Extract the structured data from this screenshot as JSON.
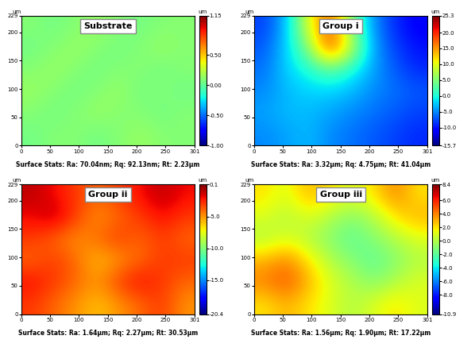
{
  "chart_data": [
    {
      "type": "heatmap",
      "title": "Substrate",
      "ylabel": "um",
      "colorbar_label": "um",
      "annotation": "Surface Stats: Ra: 70.04nm; Rq: 92.13nm; Rt: 2.23μm",
      "color": "jet",
      "xlim": [
        0,
        301
      ],
      "ylim": [
        0,
        229
      ],
      "xticks": [
        0,
        50,
        100,
        150,
        200,
        250,
        301
      ],
      "yticks": [
        0,
        50,
        100,
        150,
        200,
        229
      ],
      "color_range": [
        -1.0,
        1.15
      ],
      "colorbar_ticks": [
        {
          "value": -1.0,
          "label": "-1.00"
        },
        {
          "value": -0.5,
          "label": "-0.50"
        },
        {
          "value": 0.0,
          "label": "0.00"
        },
        {
          "value": 0.5,
          "label": "0.50"
        },
        1.15
      ],
      "cells": [
        [
          0.1,
          0.05,
          0.1,
          0.15,
          0.1,
          0.05,
          0.1,
          0.1
        ],
        [
          0.05,
          0.1,
          0.15,
          0.1,
          0.05,
          0.1,
          0.15,
          0.1
        ],
        [
          0.1,
          0.15,
          0.1,
          0.05,
          0.1,
          0.1,
          0.05,
          0.1
        ],
        [
          0.15,
          0.1,
          0.05,
          0.1,
          0.15,
          0.05,
          0.1,
          0.05
        ],
        [
          0.1,
          0.05,
          0.1,
          0.15,
          0.1,
          0.1,
          0.05,
          0.1
        ],
        [
          0.05,
          0.1,
          0.1,
          0.05,
          0.1,
          0.15,
          0.1,
          0.1
        ]
      ]
    },
    {
      "type": "heatmap",
      "title": "Group i",
      "ylabel": "um",
      "colorbar_label": "um",
      "annotation": "Surface Stats: Ra: 3.32μm; Rq: 4.75μm; Rt: 41.04μm",
      "color": "jet",
      "xlim": [
        0,
        301
      ],
      "ylim": [
        0,
        229
      ],
      "xticks": [
        0,
        50,
        100,
        150,
        200,
        250,
        301
      ],
      "yticks": [
        0,
        50,
        100,
        150,
        200,
        229
      ],
      "color_range": [
        -15.7,
        25.3
      ],
      "colorbar_ticks": [
        -15.7,
        {
          "value": -10.0,
          "label": "-10.0"
        },
        {
          "value": -5.0,
          "label": "-5.0"
        },
        0.0,
        5.0,
        10.0,
        15.0,
        20.0,
        25.3
      ],
      "cells": [
        [
          -8,
          -3,
          10,
          18,
          5,
          -5,
          -9,
          -11
        ],
        [
          -7,
          -2,
          5,
          20,
          8,
          -4,
          -8,
          -10
        ],
        [
          -6,
          -2,
          0,
          3,
          0,
          -4,
          -7,
          -9
        ],
        [
          -5,
          -3,
          -2,
          -2,
          -3,
          -5,
          -6,
          -7
        ],
        [
          -4,
          -3,
          -3,
          -4,
          -5,
          -6,
          -7,
          -8
        ],
        [
          -5,
          -4,
          -3,
          -5,
          -6,
          -7,
          -8,
          -9
        ]
      ]
    },
    {
      "type": "heatmap",
      "title": "Group ii",
      "ylabel": "um",
      "colorbar_label": "um",
      "annotation": "Surface Stats: Ra: 1.64μm; Rq: 2.27μm; Rt: 30.53μm",
      "color": "jet",
      "xlim": [
        0,
        301
      ],
      "ylim": [
        0,
        229
      ],
      "xticks": [
        0,
        50,
        100,
        150,
        200,
        250,
        301
      ],
      "yticks": [
        0,
        50,
        100,
        150,
        200,
        229
      ],
      "color_range": [
        -20.4,
        0.1
      ],
      "colorbar_ticks": [
        -20.4,
        {
          "value": -15.0,
          "label": "-15.0"
        },
        {
          "value": -10.0,
          "label": "-10.0"
        },
        {
          "value": -5.0,
          "label": "-5.0"
        },
        0.1
      ],
      "cells": [
        [
          -1,
          -2,
          -3,
          -4,
          -3,
          -2,
          -1,
          -2
        ],
        [
          -2,
          -1,
          -3,
          -5,
          -4,
          -3,
          -2,
          -3
        ],
        [
          -3,
          -4,
          -5,
          -4,
          -3,
          -4,
          -3,
          -4
        ],
        [
          -4,
          -3,
          -4,
          -6,
          -5,
          -4,
          -3,
          -3
        ],
        [
          -2,
          -3,
          -4,
          -5,
          -3,
          -2,
          -3,
          -4
        ],
        [
          -3,
          -4,
          -5,
          -6,
          -5,
          -4,
          -3,
          -5
        ]
      ]
    },
    {
      "type": "heatmap",
      "title": "Group iii",
      "ylabel": "um",
      "colorbar_label": "um",
      "annotation": "Surface Stats: Ra: 1.56μm; Rq: 1.90μm; Rt: 17.22μm",
      "color": "jet",
      "xlim": [
        0,
        301
      ],
      "ylim": [
        0,
        229
      ],
      "xticks": [
        0,
        50,
        100,
        150,
        200,
        250,
        301
      ],
      "yticks": [
        0,
        50,
        100,
        150,
        200,
        229
      ],
      "color_range": [
        -10.9,
        8.4
      ],
      "colorbar_ticks": [
        -10.9,
        {
          "value": -8.0,
          "label": "-8.0"
        },
        {
          "value": -6.0,
          "label": "-6.0"
        },
        {
          "value": -4.0,
          "label": "-4.0"
        },
        {
          "value": -2.0,
          "label": "-2.0"
        },
        0.0,
        2.0,
        4.0,
        6.0,
        8.4
      ],
      "cells": [
        [
          2,
          1,
          3,
          2,
          1,
          2,
          4,
          2
        ],
        [
          1,
          0,
          1,
          0,
          -1,
          0,
          2,
          3
        ],
        [
          0,
          1,
          0,
          -1,
          -2,
          -1,
          0,
          1
        ],
        [
          3,
          4,
          2,
          0,
          -1,
          -2,
          -1,
          0
        ],
        [
          4,
          5,
          3,
          1,
          0,
          -1,
          0,
          1
        ],
        [
          2,
          3,
          2,
          1,
          0,
          1,
          2,
          1
        ]
      ]
    }
  ]
}
